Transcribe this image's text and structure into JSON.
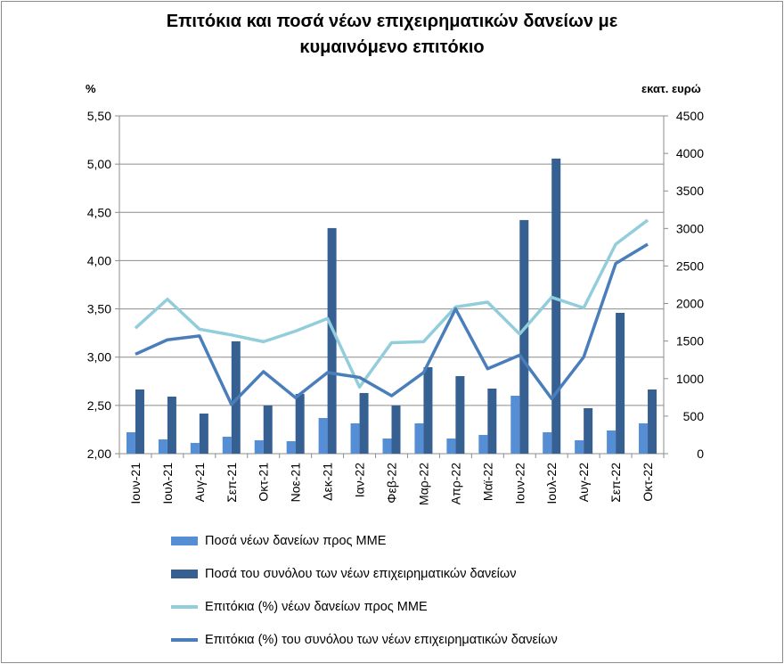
{
  "chart_data": {
    "type": "bar+line",
    "title_line1": "Επιτόκια και ποσά νέων επιχειρηματικών δανείων με",
    "title_line2": "κυμαινόμενο επιτόκιο",
    "ylabel_left": "%",
    "ylabel_right": "εκατ. ευρώ",
    "ylim_left": [
      2.0,
      5.5
    ],
    "ylim_right": [
      0,
      4500
    ],
    "yticks_left": [
      "2,00",
      "2,50",
      "3,00",
      "3,50",
      "4,00",
      "4,50",
      "5,00",
      "5,50"
    ],
    "yticks_right": [
      "0",
      "500",
      "1000",
      "1500",
      "2000",
      "2500",
      "3000",
      "3500",
      "4000",
      "4500"
    ],
    "grid": true,
    "legend_position": "bottom",
    "categories": [
      "Ιουν-21",
      "Ιουλ-21",
      "Αυγ-21",
      "Σεπ-21",
      "Οκτ-21",
      "Νοε-21",
      "Δεκ-21",
      "Ιαν-22",
      "Φεβ-22",
      "Μαρ-22",
      "Απρ-22",
      "Μαϊ-22",
      "Ιουν-22",
      "Ιουλ-22",
      "Αυγ-22",
      "Σεπ-22",
      "Οκτ-22"
    ],
    "series": [
      {
        "name": "Ποσά νέων δανείων προς ΜΜΕ",
        "kind": "bar",
        "axis": "right",
        "color": "#558ed5",
        "values": [
          285,
          190,
          143,
          226,
          178,
          166,
          475,
          404,
          202,
          404,
          202,
          250,
          772,
          285,
          178,
          309,
          404
        ]
      },
      {
        "name": "Ποσά του συνόλου των νέων επιχειρηματικών δανείων",
        "kind": "bar",
        "axis": "right",
        "color": "#366092",
        "values": [
          855,
          760,
          534,
          1496,
          641,
          796,
          3005,
          808,
          641,
          1152,
          1033,
          867,
          3112,
          3931,
          606,
          1876,
          855
        ]
      },
      {
        "name": "Επιτόκια (%) νέων δανείων προς ΜΜΕ",
        "kind": "line",
        "axis": "left",
        "color": "#92cddc",
        "values": [
          3.3,
          3.6,
          3.29,
          3.23,
          3.16,
          3.27,
          3.4,
          2.69,
          3.15,
          3.16,
          3.52,
          3.57,
          3.24,
          3.62,
          3.51,
          4.17,
          4.42
        ]
      },
      {
        "name": "Επιτόκια (%) του συνόλου των νέων επιχειρηματικών δανείων",
        "kind": "line",
        "axis": "left",
        "color": "#4a7ebb",
        "values": [
          3.03,
          3.18,
          3.22,
          2.51,
          2.85,
          2.58,
          2.84,
          2.79,
          2.6,
          2.84,
          3.5,
          2.88,
          3.02,
          2.57,
          3.0,
          3.97,
          4.17
        ]
      }
    ]
  }
}
